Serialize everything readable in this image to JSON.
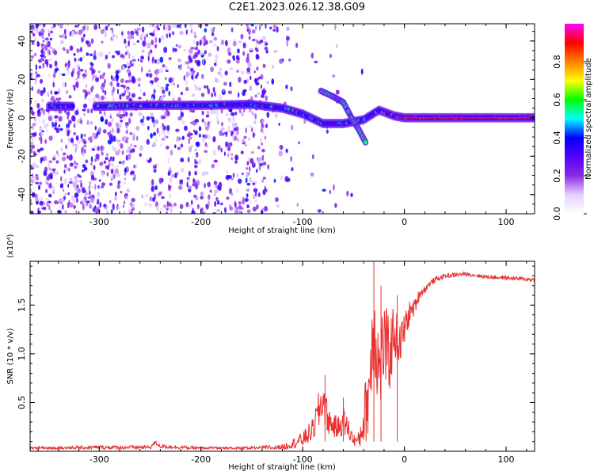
{
  "title": "C2E1.2023.026.12.38.G09",
  "chart_data": [
    {
      "type": "heatmap",
      "xlabel": "Height of straight line (km)",
      "ylabel": "Frequency (Hz)",
      "xlim": [
        -368,
        128
      ],
      "ylim": [
        -50,
        49
      ],
      "xticks": [
        -300,
        -200,
        -100,
        0,
        100
      ],
      "yticks": [
        -40,
        -20,
        0,
        20,
        40
      ],
      "colorbar": {
        "label": "Normalized spectral amplitude",
        "range": [
          0,
          1
        ],
        "ticks": [
          0.0,
          0.2,
          0.4,
          0.6,
          0.8
        ],
        "colormap": [
          "#ffffff",
          "#e6d0ff",
          "#8a2be2",
          "#5500ff",
          "#0000ff",
          "#00ffff",
          "#00ff00",
          "#ffff00",
          "#ff8000",
          "#ff0000",
          "#ff00ff"
        ]
      },
      "ridge": [
        {
          "x": -350,
          "y": 6,
          "a": 0.45
        },
        {
          "x": -300,
          "y": 6,
          "a": 0.5
        },
        {
          "x": -250,
          "y": 6.5,
          "a": 0.55
        },
        {
          "x": -200,
          "y": 6.5,
          "a": 0.5
        },
        {
          "x": -150,
          "y": 7,
          "a": 0.5
        },
        {
          "x": -120,
          "y": 5,
          "a": 0.5
        },
        {
          "x": -100,
          "y": 2,
          "a": 0.55
        },
        {
          "x": -80,
          "y": -3,
          "a": 0.55
        },
        {
          "x": -60,
          "y": -3,
          "a": 0.5
        },
        {
          "x": -40,
          "y": -1,
          "a": 0.6
        },
        {
          "x": -25,
          "y": 4,
          "a": 0.7
        },
        {
          "x": -10,
          "y": 1,
          "a": 0.8
        },
        {
          "x": 0,
          "y": 0,
          "a": 0.9
        },
        {
          "x": 50,
          "y": 0,
          "a": 0.95
        },
        {
          "x": 128,
          "y": 0,
          "a": 0.95
        }
      ],
      "branch": [
        {
          "x": -82,
          "y": 14
        },
        {
          "x": -70,
          "y": 11
        },
        {
          "x": -60,
          "y": 8
        },
        {
          "x": -52,
          "y": 0
        },
        {
          "x": -45,
          "y": -6
        },
        {
          "x": -38,
          "y": -13
        }
      ]
    },
    {
      "type": "line",
      "xlabel": "Height of straight line (km)",
      "ylabel": "SNR (10 * v/v)",
      "multiplier": "(x10⁴)",
      "xlim": [
        -368,
        128
      ],
      "ylim": [
        0,
        1.95
      ],
      "xticks": [
        -300,
        -200,
        -100,
        0,
        100
      ],
      "yticks": [
        0.5,
        1.0,
        1.5
      ],
      "ytick_labels": [
        "0.5",
        "1.0",
        "1.5"
      ],
      "series": [
        {
          "color": "#e83030",
          "x": [
            -368,
            -300,
            -250,
            -245,
            -240,
            -200,
            -150,
            -120,
            -110,
            -100,
            -90,
            -85,
            -80,
            -75,
            -70,
            -65,
            -60,
            -55,
            -50,
            -45,
            -40,
            -35,
            -30,
            -25,
            -20,
            -15,
            -10,
            -5,
            0,
            5,
            10,
            15,
            20,
            25,
            30,
            40,
            60,
            80,
            100,
            128
          ],
          "y": [
            0.03,
            0.04,
            0.04,
            0.09,
            0.05,
            0.03,
            0.03,
            0.04,
            0.08,
            0.12,
            0.22,
            0.38,
            0.55,
            0.32,
            0.26,
            0.24,
            0.32,
            0.22,
            0.12,
            0.1,
            0.32,
            0.62,
            1.35,
            0.82,
            1.12,
            0.95,
            1.25,
            1.08,
            1.25,
            1.42,
            1.48,
            1.62,
            1.66,
            1.72,
            1.76,
            1.8,
            1.82,
            1.79,
            1.78,
            1.76
          ],
          "noise": [
            0.015,
            0.02,
            0.02,
            0.02,
            0.02,
            0.015,
            0.02,
            0.03,
            0.05,
            0.08,
            0.12,
            0.2,
            0.25,
            0.15,
            0.12,
            0.12,
            0.15,
            0.12,
            0.06,
            0.1,
            0.25,
            0.5,
            0.6,
            0.5,
            0.45,
            0.4,
            0.3,
            0.22,
            0.18,
            0.12,
            0.08,
            0.06,
            0.04,
            0.03,
            0.03,
            0.025,
            0.02,
            0.02,
            0.02,
            0.02
          ],
          "spikes": [
            {
              "x": -30,
              "y": 1.95
            },
            {
              "x": -23,
              "y": 1.7
            },
            {
              "x": -7,
              "y": 1.6
            },
            {
              "x": -60,
              "y": 0.55
            },
            {
              "x": -78,
              "y": 0.78
            }
          ]
        }
      ]
    }
  ]
}
